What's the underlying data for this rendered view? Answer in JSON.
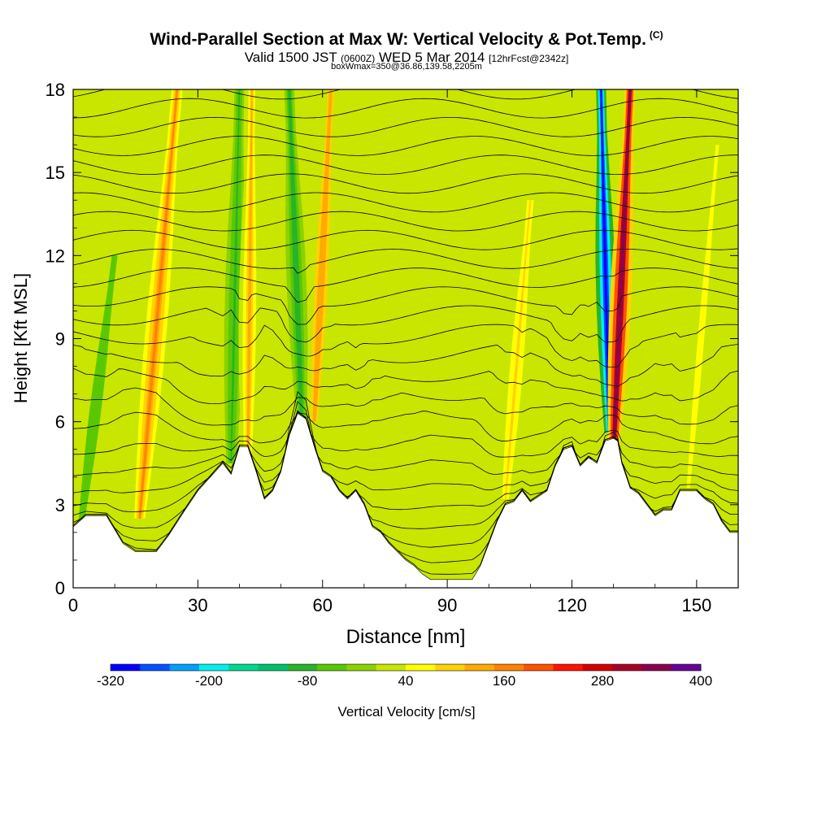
{
  "header": {
    "title": "Wind-Parallel Section at Max W: Vertical Velocity & Pot.Temp.",
    "copyright": "(C)",
    "valid_prefix": "Valid 1500 JST",
    "valid_utc": "(0600Z)",
    "valid_date": "WED 5 Mar 2014",
    "forecast": "[12hrFcst@2342z]",
    "box_info": "boxWmax=350@36.86,139.58,2205m"
  },
  "chart_data": {
    "type": "heatmap",
    "xlabel": "Distance [nm]",
    "ylabel": "Height [Kft MSL]",
    "xlim": [
      0,
      160
    ],
    "ylim": [
      0,
      18
    ],
    "x_ticks": [
      "0",
      "30",
      "60",
      "90",
      "120",
      "150"
    ],
    "y_ticks": [
      "0",
      "3",
      "6",
      "9",
      "12",
      "15",
      "18"
    ],
    "colorbar": {
      "label": "Vertical Velocity [cm/s]",
      "ticks": [
        "-320",
        "-200",
        "-80",
        "40",
        "160",
        "280",
        "400"
      ],
      "min": -320,
      "max": 400,
      "colors": [
        "#0000ff",
        "#0050ff",
        "#00a0ff",
        "#00f0f0",
        "#00d890",
        "#00c070",
        "#28b428",
        "#5ac800",
        "#8cd200",
        "#c8e600",
        "#ffff00",
        "#ffd200",
        "#ffaa00",
        "#ff8200",
        "#ff5000",
        "#ff1400",
        "#d20000",
        "#aa0028",
        "#8c0050",
        "#640096"
      ]
    },
    "terrain": [
      [
        0,
        2.2
      ],
      [
        3,
        2.6
      ],
      [
        8,
        2.6
      ],
      [
        12,
        1.6
      ],
      [
        15,
        1.3
      ],
      [
        20,
        1.3
      ],
      [
        23,
        1.9
      ],
      [
        26,
        2.6
      ],
      [
        30,
        3.5
      ],
      [
        33,
        4.0
      ],
      [
        36,
        4.5
      ],
      [
        38,
        4.1
      ],
      [
        40,
        5.1
      ],
      [
        42,
        5.1
      ],
      [
        44,
        4.2
      ],
      [
        46,
        3.2
      ],
      [
        48,
        3.5
      ],
      [
        50,
        4.2
      ],
      [
        52,
        5.5
      ],
      [
        54,
        6.3
      ],
      [
        56,
        6.1
      ],
      [
        58,
        5.1
      ],
      [
        60,
        4.2
      ],
      [
        62,
        4.0
      ],
      [
        64,
        3.5
      ],
      [
        66,
        3.2
      ],
      [
        68,
        3.5
      ],
      [
        70,
        3.0
      ],
      [
        72,
        2.2
      ],
      [
        74,
        2.0
      ],
      [
        76,
        1.6
      ],
      [
        78,
        1.3
      ],
      [
        80,
        1.0
      ],
      [
        82,
        0.8
      ],
      [
        84,
        0.5
      ],
      [
        86,
        0.3
      ],
      [
        90,
        0.3
      ],
      [
        96,
        0.3
      ],
      [
        98,
        0.8
      ],
      [
        100,
        1.6
      ],
      [
        102,
        2.4
      ],
      [
        104,
        3.0
      ],
      [
        106,
        3.1
      ],
      [
        108,
        3.5
      ],
      [
        110,
        3.1
      ],
      [
        112,
        3.3
      ],
      [
        114,
        3.5
      ],
      [
        116,
        4.4
      ],
      [
        118,
        5.0
      ],
      [
        120,
        5.1
      ],
      [
        122,
        4.4
      ],
      [
        124,
        4.7
      ],
      [
        126,
        4.5
      ],
      [
        128,
        5.3
      ],
      [
        130,
        5.4
      ],
      [
        131,
        5.3
      ],
      [
        132,
        4.5
      ],
      [
        134,
        3.6
      ],
      [
        136,
        3.4
      ],
      [
        138,
        3.0
      ],
      [
        140,
        2.6
      ],
      [
        142,
        2.8
      ],
      [
        144,
        2.8
      ],
      [
        146,
        3.5
      ],
      [
        150,
        3.5
      ],
      [
        152,
        3.2
      ],
      [
        154,
        3.0
      ],
      [
        156,
        2.4
      ],
      [
        158,
        2.0
      ],
      [
        160,
        2.0
      ]
    ],
    "updraft_bands": [
      {
        "x_base": 16,
        "x_top": 25,
        "z_base": 2.5,
        "z_top": 18,
        "w": 160
      },
      {
        "x_base": 42,
        "x_top": 43,
        "z_base": 4.0,
        "z_top": 18,
        "w": 120
      },
      {
        "x_base": 58,
        "x_top": 62,
        "z_base": 6.0,
        "z_top": 18,
        "w": 140
      },
      {
        "x_base": 104,
        "x_top": 110,
        "z_base": 3.2,
        "z_top": 14,
        "w": 80
      },
      {
        "x_base": 130,
        "x_top": 134,
        "z_base": 4.8,
        "z_top": 18,
        "w": 350
      },
      {
        "x_base": 148,
        "x_top": 155,
        "z_base": 3.6,
        "z_top": 16,
        "w": 60
      }
    ],
    "downdraft_bands": [
      {
        "x_base": 2,
        "x_top": 10,
        "z_base": 2.4,
        "z_top": 12,
        "w": -60
      },
      {
        "x_base": 38,
        "x_top": 40,
        "z_base": 4.5,
        "z_top": 18,
        "w": -80
      },
      {
        "x_base": 55,
        "x_top": 52,
        "z_base": 6.0,
        "z_top": 18,
        "w": -100
      },
      {
        "x_base": 129,
        "x_top": 127,
        "z_base": 5.6,
        "z_top": 18,
        "w": -320
      }
    ]
  }
}
